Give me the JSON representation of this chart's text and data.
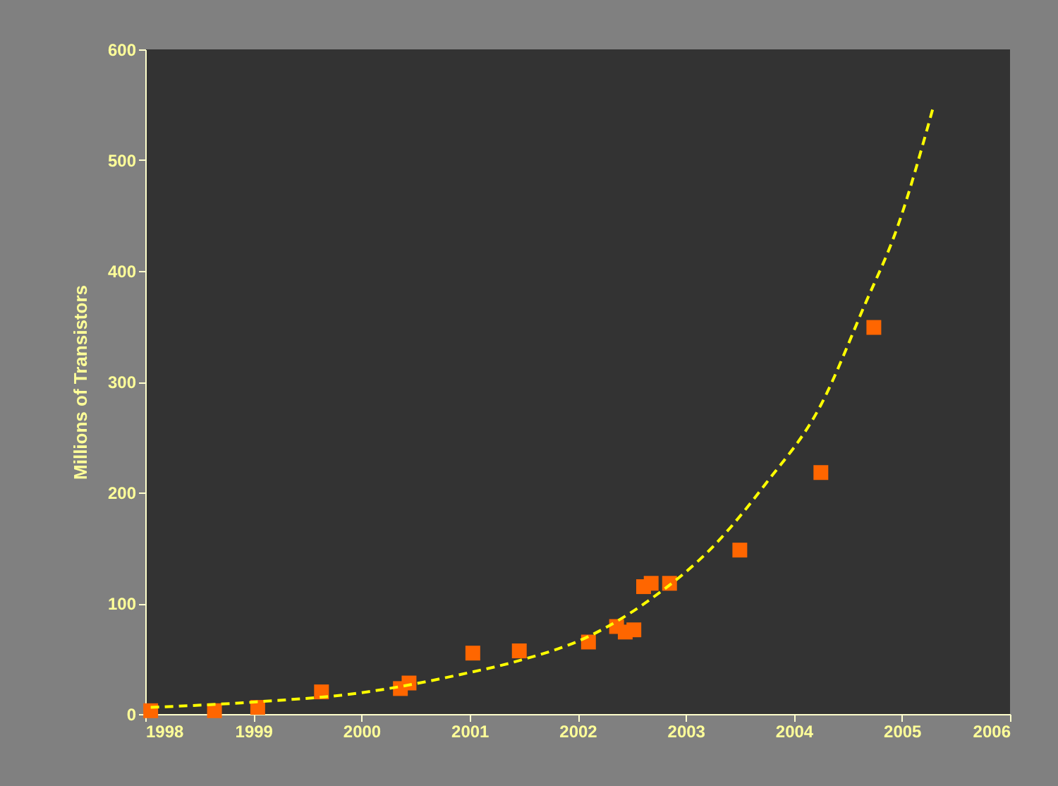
{
  "chart_data": {
    "type": "scatter",
    "ylabel": "Millions of Transistors",
    "xlim": [
      1998,
      2006
    ],
    "xticks": [
      1998,
      1999,
      2000,
      2001,
      2002,
      2003,
      2004,
      2005,
      2006
    ],
    "ylim": [
      0,
      600
    ],
    "yticks": [
      0,
      100,
      200,
      300,
      400,
      500,
      600
    ],
    "grid": false,
    "legend": false,
    "series": [
      {
        "color": "#ff6600",
        "marker": "square",
        "x": [
          1998.05,
          1998.64,
          1999.04,
          1999.63,
          2000.36,
          2000.44,
          2001.03,
          2001.46,
          2002.1,
          2002.36,
          2002.44,
          2002.52,
          2002.61,
          2002.68,
          2002.85,
          2003.5,
          2004.25,
          2004.74
        ],
        "values": [
          3,
          3,
          6,
          20,
          23,
          28,
          55,
          57,
          65,
          79,
          74,
          76,
          115,
          118,
          118,
          148,
          218,
          349
        ]
      },
      {
        "type": "line",
        "color": "#ffff00",
        "line_style": "dashed",
        "x": [
          1998.05,
          1999.03,
          1999.98,
          2000.93,
          2001.45,
          2002.1,
          2002.65,
          2003.27,
          2003.74,
          2004.25,
          2004.65,
          2004.96,
          2005.29
        ],
        "values": [
          6,
          11,
          19,
          36,
          48,
          70,
          102,
          153,
          208,
          279,
          368,
          440,
          548
        ]
      }
    ]
  }
}
